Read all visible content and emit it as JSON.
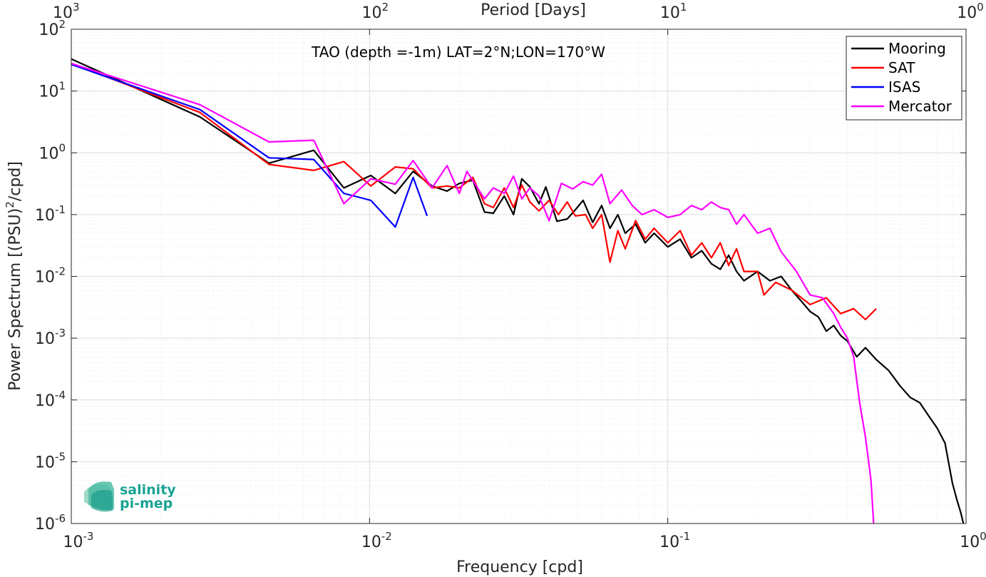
{
  "chart_data": {
    "type": "line",
    "title": "TAO (depth =-1m) LAT=2°N;LON=170°W",
    "xlabel": "Frequency [cpd]",
    "ylabel_main": "Power Spectrum [(PSU)",
    "ylabel_exp": "2",
    "ylabel_tail": "/cpd]",
    "top_xlabel": "Period [Days]",
    "x_scale": "log",
    "y_scale": "log",
    "xlim": [
      0.001,
      1
    ],
    "ylim": [
      1e-06,
      100
    ],
    "grid": true,
    "legend_position": "top-right",
    "x_ticks": [
      {
        "base": "10",
        "exp": "-3",
        "value": 0.001
      },
      {
        "base": "10",
        "exp": "-2",
        "value": 0.01
      },
      {
        "base": "10",
        "exp": "-1",
        "value": 0.1
      },
      {
        "base": "10",
        "exp": "0",
        "value": 1
      }
    ],
    "top_ticks": [
      {
        "base": "10",
        "exp": "3",
        "value": 0.001
      },
      {
        "base": "10",
        "exp": "2",
        "value": 0.01
      },
      {
        "base": "10",
        "exp": "1",
        "value": 0.1
      },
      {
        "base": "10",
        "exp": "0",
        "value": 1
      }
    ],
    "y_ticks": [
      {
        "base": "10",
        "exp": "2",
        "value": 100
      },
      {
        "base": "10",
        "exp": "1",
        "value": 10
      },
      {
        "base": "10",
        "exp": "0",
        "value": 1
      },
      {
        "base": "10",
        "exp": "-1",
        "value": 0.1
      },
      {
        "base": "10",
        "exp": "-2",
        "value": 0.01
      },
      {
        "base": "10",
        "exp": "-3",
        "value": 0.001
      },
      {
        "base": "10",
        "exp": "-4",
        "value": 0.0001
      },
      {
        "base": "10",
        "exp": "-5",
        "value": 1e-05
      },
      {
        "base": "10",
        "exp": "-6",
        "value": 1e-06
      }
    ],
    "series": [
      {
        "name": "Mooring",
        "color": "#000000",
        "points": [
          [
            0.001,
            33
          ],
          [
            0.0027,
            3.8
          ],
          [
            0.0046,
            0.68
          ],
          [
            0.0065,
            1.1
          ],
          [
            0.0082,
            0.27
          ],
          [
            0.0101,
            0.43
          ],
          [
            0.0122,
            0.22
          ],
          [
            0.014,
            0.5
          ],
          [
            0.0162,
            0.29
          ],
          [
            0.0182,
            0.24
          ],
          [
            0.02,
            0.32
          ],
          [
            0.0222,
            0.36
          ],
          [
            0.0243,
            0.11
          ],
          [
            0.026,
            0.105
          ],
          [
            0.0283,
            0.2
          ],
          [
            0.0304,
            0.1
          ],
          [
            0.0324,
            0.38
          ],
          [
            0.0345,
            0.28
          ],
          [
            0.037,
            0.15
          ],
          [
            0.039,
            0.28
          ],
          [
            0.0425,
            0.078
          ],
          [
            0.046,
            0.085
          ],
          [
            0.049,
            0.12
          ],
          [
            0.052,
            0.17
          ],
          [
            0.056,
            0.075
          ],
          [
            0.06,
            0.14
          ],
          [
            0.064,
            0.06
          ],
          [
            0.068,
            0.1
          ],
          [
            0.072,
            0.05
          ],
          [
            0.078,
            0.07
          ],
          [
            0.084,
            0.035
          ],
          [
            0.09,
            0.05
          ],
          [
            0.1,
            0.03
          ],
          [
            0.11,
            0.04
          ],
          [
            0.12,
            0.02
          ],
          [
            0.13,
            0.026
          ],
          [
            0.14,
            0.016
          ],
          [
            0.15,
            0.013
          ],
          [
            0.16,
            0.022
          ],
          [
            0.17,
            0.012
          ],
          [
            0.18,
            0.0085
          ],
          [
            0.2,
            0.012
          ],
          [
            0.22,
            0.0085
          ],
          [
            0.24,
            0.01
          ],
          [
            0.26,
            0.006
          ],
          [
            0.28,
            0.004
          ],
          [
            0.3,
            0.0027
          ],
          [
            0.32,
            0.0022
          ],
          [
            0.34,
            0.0013
          ],
          [
            0.36,
            0.0016
          ],
          [
            0.38,
            0.0011
          ],
          [
            0.4,
            0.0009
          ],
          [
            0.43,
            0.0005
          ],
          [
            0.46,
            0.0007
          ],
          [
            0.5,
            0.00045
          ],
          [
            0.55,
            0.0003
          ],
          [
            0.6,
            0.00017
          ],
          [
            0.65,
            0.00011
          ],
          [
            0.7,
            9e-05
          ],
          [
            0.75,
            5.5e-05
          ],
          [
            0.8,
            3.5e-05
          ],
          [
            0.85,
            2e-05
          ],
          [
            0.9,
            4.5e-06
          ],
          [
            0.93,
            2.5e-06
          ],
          [
            0.96,
            1.5e-06
          ],
          [
            0.98,
            1e-06
          ]
        ]
      },
      {
        "name": "SAT",
        "color": "#ff0000",
        "points": [
          [
            0.001,
            28
          ],
          [
            0.0027,
            4.5
          ],
          [
            0.0046,
            0.65
          ],
          [
            0.0065,
            0.52
          ],
          [
            0.0082,
            0.72
          ],
          [
            0.0101,
            0.29
          ],
          [
            0.0122,
            0.59
          ],
          [
            0.014,
            0.55
          ],
          [
            0.0162,
            0.27
          ],
          [
            0.0182,
            0.29
          ],
          [
            0.02,
            0.27
          ],
          [
            0.0222,
            0.4
          ],
          [
            0.0243,
            0.15
          ],
          [
            0.026,
            0.13
          ],
          [
            0.0283,
            0.27
          ],
          [
            0.0304,
            0.13
          ],
          [
            0.0324,
            0.3
          ],
          [
            0.0345,
            0.16
          ],
          [
            0.037,
            0.115
          ],
          [
            0.04,
            0.17
          ],
          [
            0.043,
            0.1
          ],
          [
            0.046,
            0.16
          ],
          [
            0.049,
            0.095
          ],
          [
            0.053,
            0.1
          ],
          [
            0.056,
            0.06
          ],
          [
            0.06,
            0.1
          ],
          [
            0.064,
            0.017
          ],
          [
            0.068,
            0.055
          ],
          [
            0.072,
            0.028
          ],
          [
            0.078,
            0.08
          ],
          [
            0.084,
            0.04
          ],
          [
            0.09,
            0.06
          ],
          [
            0.1,
            0.035
          ],
          [
            0.11,
            0.055
          ],
          [
            0.12,
            0.022
          ],
          [
            0.13,
            0.035
          ],
          [
            0.14,
            0.02
          ],
          [
            0.15,
            0.035
          ],
          [
            0.16,
            0.015
          ],
          [
            0.17,
            0.028
          ],
          [
            0.18,
            0.012
          ],
          [
            0.2,
            0.012
          ],
          [
            0.21,
            0.005
          ],
          [
            0.23,
            0.008
          ],
          [
            0.26,
            0.006
          ],
          [
            0.3,
            0.0035
          ],
          [
            0.34,
            0.0045
          ],
          [
            0.38,
            0.0025
          ],
          [
            0.42,
            0.003
          ],
          [
            0.46,
            0.002
          ],
          [
            0.5,
            0.003
          ]
        ]
      },
      {
        "name": "ISAS",
        "color": "#0000ff",
        "points": [
          [
            0.001,
            27
          ],
          [
            0.0027,
            5.0
          ],
          [
            0.0046,
            0.83
          ],
          [
            0.0065,
            0.78
          ],
          [
            0.0082,
            0.22
          ],
          [
            0.0101,
            0.17
          ],
          [
            0.0122,
            0.063
          ],
          [
            0.014,
            0.4
          ],
          [
            0.0156,
            0.095
          ]
        ]
      },
      {
        "name": "Mercator",
        "color": "#ff00ff",
        "points": [
          [
            0.001,
            28
          ],
          [
            0.0027,
            6.0
          ],
          [
            0.0046,
            1.5
          ],
          [
            0.0065,
            1.6
          ],
          [
            0.0082,
            0.15
          ],
          [
            0.0101,
            0.38
          ],
          [
            0.0122,
            0.31
          ],
          [
            0.014,
            0.75
          ],
          [
            0.0162,
            0.27
          ],
          [
            0.0182,
            0.62
          ],
          [
            0.02,
            0.22
          ],
          [
            0.0212,
            0.5
          ],
          [
            0.0243,
            0.18
          ],
          [
            0.026,
            0.27
          ],
          [
            0.0283,
            0.22
          ],
          [
            0.0304,
            0.42
          ],
          [
            0.0324,
            0.18
          ],
          [
            0.0345,
            0.27
          ],
          [
            0.037,
            0.2
          ],
          [
            0.04,
            0.08
          ],
          [
            0.044,
            0.32
          ],
          [
            0.048,
            0.26
          ],
          [
            0.052,
            0.34
          ],
          [
            0.056,
            0.3
          ],
          [
            0.06,
            0.45
          ],
          [
            0.064,
            0.15
          ],
          [
            0.07,
            0.25
          ],
          [
            0.076,
            0.14
          ],
          [
            0.082,
            0.1
          ],
          [
            0.09,
            0.12
          ],
          [
            0.1,
            0.09
          ],
          [
            0.11,
            0.1
          ],
          [
            0.12,
            0.14
          ],
          [
            0.13,
            0.12
          ],
          [
            0.14,
            0.16
          ],
          [
            0.15,
            0.13
          ],
          [
            0.16,
            0.12
          ],
          [
            0.17,
            0.07
          ],
          [
            0.18,
            0.1
          ],
          [
            0.2,
            0.05
          ],
          [
            0.22,
            0.06
          ],
          [
            0.24,
            0.025
          ],
          [
            0.27,
            0.012
          ],
          [
            0.3,
            0.005
          ],
          [
            0.33,
            0.0045
          ],
          [
            0.36,
            0.0025
          ],
          [
            0.38,
            0.0015
          ],
          [
            0.4,
            0.001
          ],
          [
            0.42,
            0.0005
          ],
          [
            0.44,
            9e-05
          ],
          [
            0.46,
            2.5e-05
          ],
          [
            0.48,
            5e-06
          ],
          [
            0.49,
            1e-06
          ]
        ]
      }
    ]
  },
  "logo": {
    "line1": "salinity",
    "line2": "pi-mep"
  }
}
